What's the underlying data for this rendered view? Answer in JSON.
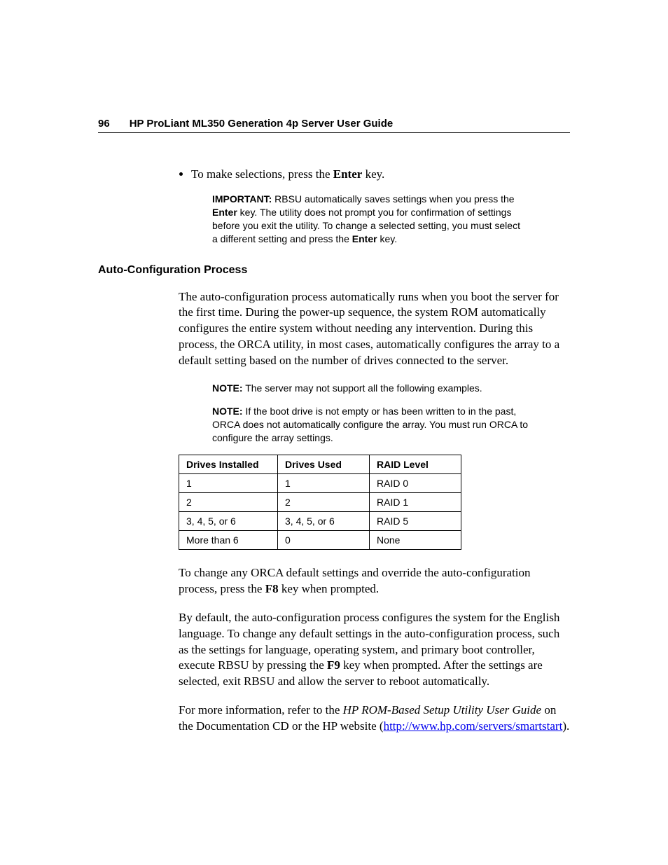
{
  "header": {
    "page_number": "96",
    "title": "HP ProLiant ML350 Generation 4p Server User Guide"
  },
  "bullet": {
    "pre": "To make selections, press the ",
    "key": "Enter",
    "post": " key."
  },
  "important": {
    "label": "IMPORTANT:",
    "pre": "  RBSU automatically saves settings when you press the ",
    "key1": "Enter",
    "mid": " key. The utility does not prompt you for confirmation of settings before you exit the utility. To change a selected setting, you must select a different setting and press the ",
    "key2": "Enter",
    "post": " key."
  },
  "section_heading": "Auto-Configuration Process",
  "para1": "The auto-configuration process automatically runs when you boot the server for the first time. During the power-up sequence, the system ROM automatically configures the entire system without needing any intervention. During this process, the ORCA utility, in most cases, automatically configures the array to a default setting based on the number of drives connected to the server.",
  "note1": {
    "label": "NOTE:",
    "text": "  The server may not support all the following examples."
  },
  "note2": {
    "label": "NOTE:",
    "text": "  If the boot drive is not empty or has been written to in the past, ORCA does not automatically configure the array. You must run ORCA to configure the array settings."
  },
  "table": {
    "headers": [
      "Drives Installed",
      "Drives Used",
      "RAID Level"
    ],
    "rows": [
      [
        "1",
        "1",
        "RAID 0"
      ],
      [
        "2",
        "2",
        "RAID 1"
      ],
      [
        "3, 4, 5, or 6",
        "3, 4, 5, or 6",
        "RAID 5"
      ],
      [
        "More than 6",
        "0",
        "None"
      ]
    ]
  },
  "para2": {
    "pre": "To change any ORCA default settings and override the auto-configuration process, press the ",
    "key": "F8",
    "post": " key when prompted."
  },
  "para3": {
    "pre": "By default, the auto-configuration process configures the system for the English language. To change any default settings in the auto-configuration process, such as the settings for language, operating system, and primary boot controller, execute RBSU by pressing the ",
    "key": "F9",
    "post": " key when prompted. After the settings are selected, exit RBSU and allow the server to reboot automatically."
  },
  "para4": {
    "pre": "For more information, refer to the ",
    "italic": "HP ROM-Based Setup Utility User Guide",
    "mid": " on the Documentation CD or the HP website (",
    "link": "http://www.hp.com/servers/smartstart",
    "post": ")."
  }
}
